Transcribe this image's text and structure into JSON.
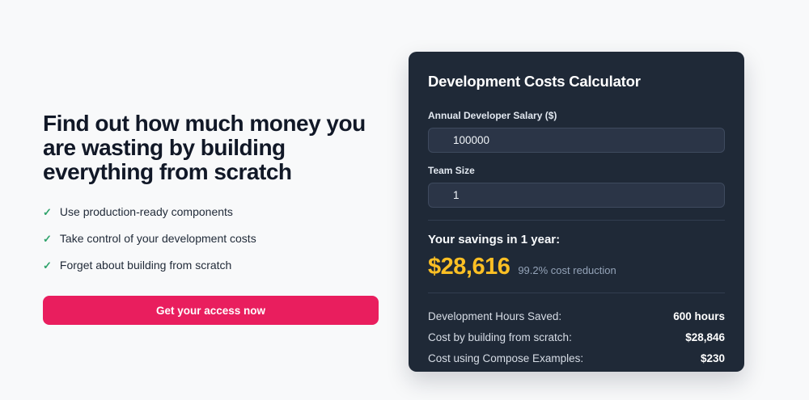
{
  "page": {
    "background_color": "#f8f9fa"
  },
  "hero": {
    "heading": "Find out how much money you are wasting by building everything from scratch",
    "features": [
      {
        "icon": "check-icon",
        "label": "Use production-ready components"
      },
      {
        "icon": "check-icon",
        "label": "Take control of your development costs"
      },
      {
        "icon": "check-icon",
        "label": "Forget about building from scratch"
      }
    ],
    "check_glyph": "✓",
    "check_color": "#2fa36b",
    "cta_label": "Get your access now",
    "cta_color": "#e91e5e"
  },
  "calculator": {
    "title": "Development Costs Calculator",
    "card_color": "#1f2937",
    "fields": [
      {
        "label": "Annual Developer Salary ($)",
        "value": "100000"
      },
      {
        "label": "Team Size",
        "value": "1"
      }
    ],
    "savings": {
      "heading": "Your savings in 1 year:",
      "amount": "$28,616",
      "amount_color": "#fbbf24",
      "note": "99.2% cost reduction"
    },
    "breakdown": [
      {
        "label": "Development Hours Saved:",
        "value": "600 hours"
      },
      {
        "label": "Cost by building from scratch:",
        "value": "$28,846"
      },
      {
        "label": "Cost using Compose Examples:",
        "value": "$230"
      }
    ]
  }
}
